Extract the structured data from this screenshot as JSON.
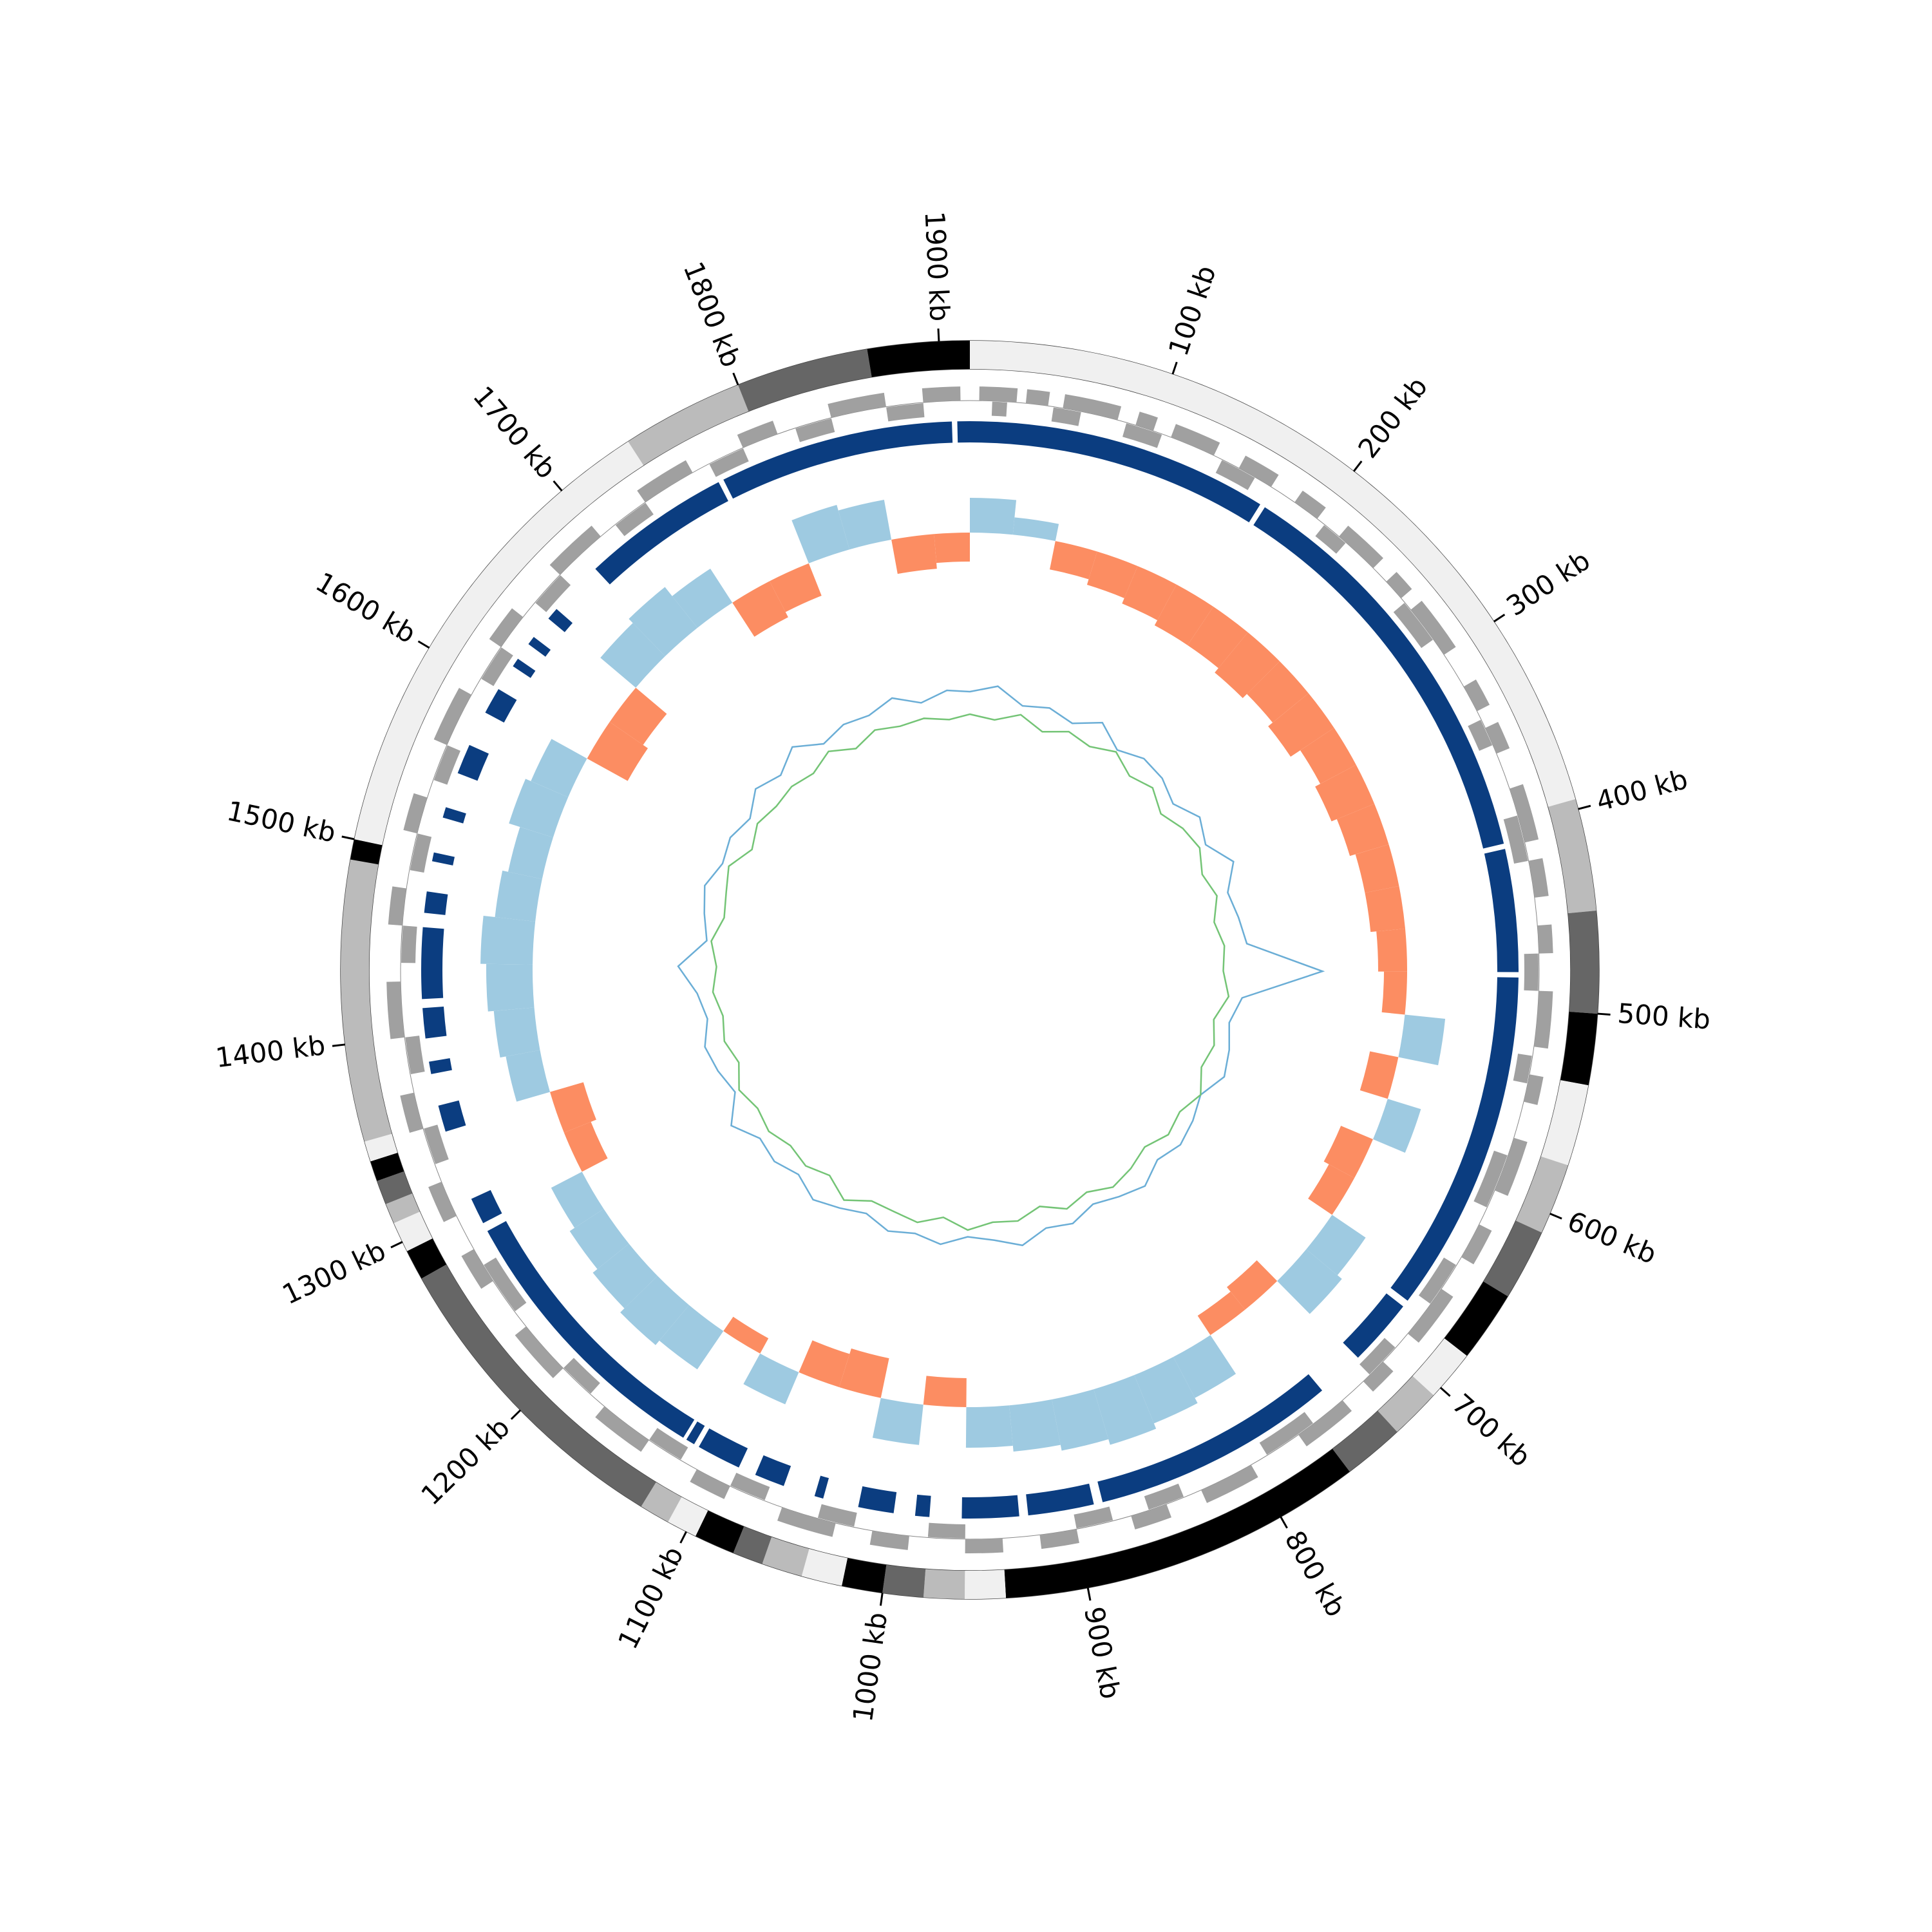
{
  "chart_data": {
    "type": "circular",
    "xlim": [
      0,
      1915
    ],
    "xticks": [
      {
        "value": 100,
        "label": "100 kb"
      },
      {
        "value": 200,
        "label": "200 kb"
      },
      {
        "value": 300,
        "label": "300 kb"
      },
      {
        "value": 400,
        "label": "400 kb"
      },
      {
        "value": 500,
        "label": "500 kb"
      },
      {
        "value": 600,
        "label": "600 kb"
      },
      {
        "value": 700,
        "label": "700 kb"
      },
      {
        "value": 800,
        "label": "800 kb"
      },
      {
        "value": 900,
        "label": "900 kb"
      },
      {
        "value": 1000,
        "label": "1000 kb"
      },
      {
        "value": 1100,
        "label": "1100 kb"
      },
      {
        "value": 1200,
        "label": "1200 kb"
      },
      {
        "value": 1300,
        "label": "1300 kb"
      },
      {
        "value": 1400,
        "label": "1400 kb"
      },
      {
        "value": 1500,
        "label": "1500 kb"
      },
      {
        "value": 1600,
        "label": "1600 kb"
      },
      {
        "value": 1700,
        "label": "1700 kb"
      },
      {
        "value": 1800,
        "label": "1800 kb"
      },
      {
        "value": 1900,
        "label": "1900 kb"
      }
    ],
    "karyotype": [
      {
        "start": 0,
        "end": 395,
        "color": "#f0f0f0"
      },
      {
        "start": 395,
        "end": 450,
        "color": "#bbbbbb"
      },
      {
        "start": 450,
        "end": 500,
        "color": "#666666"
      },
      {
        "start": 500,
        "end": 535,
        "color": "#000000"
      },
      {
        "start": 535,
        "end": 575,
        "color": "#f0f0f0"
      },
      {
        "start": 575,
        "end": 610,
        "color": "#bbbbbb"
      },
      {
        "start": 610,
        "end": 645,
        "color": "#666666"
      },
      {
        "start": 645,
        "end": 680,
        "color": "#000000"
      },
      {
        "start": 680,
        "end": 705,
        "color": "#f0f0f0"
      },
      {
        "start": 705,
        "end": 730,
        "color": "#bbbbbb"
      },
      {
        "start": 730,
        "end": 760,
        "color": "#666666"
      },
      {
        "start": 760,
        "end": 940,
        "color": "#000000"
      },
      {
        "start": 940,
        "end": 960,
        "color": "#f0f0f0"
      },
      {
        "start": 960,
        "end": 980,
        "color": "#bbbbbb"
      },
      {
        "start": 980,
        "end": 1000,
        "color": "#666666"
      },
      {
        "start": 1000,
        "end": 1020,
        "color": "#000000"
      },
      {
        "start": 1020,
        "end": 1040,
        "color": "#f0f0f0"
      },
      {
        "start": 1040,
        "end": 1060,
        "color": "#bbbbbb"
      },
      {
        "start": 1060,
        "end": 1075,
        "color": "#666666"
      },
      {
        "start": 1075,
        "end": 1095,
        "color": "#000000"
      },
      {
        "start": 1095,
        "end": 1110,
        "color": "#f0f0f0"
      },
      {
        "start": 1110,
        "end": 1125,
        "color": "#bbbbbb"
      },
      {
        "start": 1125,
        "end": 1280,
        "color": "#666666"
      },
      {
        "start": 1280,
        "end": 1295,
        "color": "#000000"
      },
      {
        "start": 1295,
        "end": 1310,
        "color": "#f0f0f0"
      },
      {
        "start": 1310,
        "end": 1320,
        "color": "#bbbbbb"
      },
      {
        "start": 1320,
        "end": 1332,
        "color": "#666666"
      },
      {
        "start": 1332,
        "end": 1342,
        "color": "#000000"
      },
      {
        "start": 1342,
        "end": 1352,
        "color": "#f0f0f0"
      },
      {
        "start": 1352,
        "end": 1490,
        "color": "#bbbbbb"
      },
      {
        "start": 1490,
        "end": 1500,
        "color": "#000000"
      },
      {
        "start": 1500,
        "end": 1740,
        "color": "#f0f0f0"
      },
      {
        "start": 1740,
        "end": 1800,
        "color": "#bbbbbb"
      },
      {
        "start": 1800,
        "end": 1865,
        "color": "#666666"
      },
      {
        "start": 1865,
        "end": 1915,
        "color": "#000000"
      }
    ],
    "genes": {
      "color": "#a0a0a0",
      "plus": [
        [
          5,
          25
        ],
        [
          30,
          42
        ],
        [
          50,
          80
        ],
        [
          90,
          100
        ],
        [
          110,
          135
        ],
        [
          150,
          170
        ],
        [
          185,
          200
        ],
        [
          215,
          240
        ],
        [
          250,
          262
        ],
        [
          270,
          300
        ],
        [
          320,
          335
        ],
        [
          345,
          360
        ],
        [
          380,
          410
        ],
        [
          420,
          440
        ],
        [
          455,
          470
        ],
        [
          490,
          520
        ],
        [
          535,
          550
        ],
        [
          570,
          600
        ],
        [
          620,
          640
        ],
        [
          660,
          690
        ],
        [
          710,
          725
        ],
        [
          740,
          770
        ],
        [
          800,
          830
        ],
        [
          850,
          870
        ],
        [
          900,
          920
        ],
        [
          940,
          960
        ],
        [
          990,
          1010
        ],
        [
          1030,
          1060
        ],
        [
          1090,
          1110
        ],
        [
          1140,
          1170
        ],
        [
          1200,
          1230
        ],
        [
          1260,
          1280
        ],
        [
          1300,
          1320
        ],
        [
          1350,
          1370
        ],
        [
          1400,
          1430
        ],
        [
          1460,
          1480
        ],
        [
          1510,
          1530
        ],
        [
          1560,
          1590
        ],
        [
          1620,
          1640
        ],
        [
          1670,
          1700
        ],
        [
          1730,
          1760
        ],
        [
          1790,
          1810
        ],
        [
          1840,
          1870
        ],
        [
          1890,
          1910
        ]
      ],
      "minus": [
        [
          12,
          20
        ],
        [
          45,
          60
        ],
        [
          85,
          105
        ],
        [
          140,
          160
        ],
        [
          205,
          220
        ],
        [
          265,
          290
        ],
        [
          340,
          355
        ],
        [
          395,
          420
        ],
        [
          470,
          490
        ],
        [
          525,
          540
        ],
        [
          580,
          610
        ],
        [
          645,
          670
        ],
        [
          700,
          720
        ],
        [
          760,
          790
        ],
        [
          840,
          860
        ],
        [
          880,
          900
        ],
        [
          960,
          980
        ],
        [
          1020,
          1040
        ],
        [
          1070,
          1090
        ],
        [
          1120,
          1140
        ],
        [
          1180,
          1200
        ],
        [
          1240,
          1270
        ],
        [
          1330,
          1350
        ],
        [
          1380,
          1400
        ],
        [
          1440,
          1460
        ],
        [
          1490,
          1510
        ],
        [
          1540,
          1560
        ],
        [
          1600,
          1620
        ],
        [
          1650,
          1670
        ],
        [
          1710,
          1730
        ],
        [
          1770,
          1790
        ],
        [
          1820,
          1840
        ],
        [
          1870,
          1890
        ]
      ]
    },
    "blocks": {
      "color": "#0b3d80",
      "spans": [
        [
          0,
          170
        ],
        [
          173,
          408
        ],
        [
          411,
          480
        ],
        [
          483,
          676
        ],
        [
          680,
          718
        ],
        [
          745,
          883
        ],
        [
          888,
          925
        ],
        [
          930,
          962
        ],
        [
          980,
          988
        ],
        [
          1000,
          1020
        ],
        [
          1040,
          1045
        ],
        [
          1063,
          1080
        ],
        [
          1090,
          1115
        ],
        [
          1118,
          1123
        ],
        [
          1125,
          1285
        ],
        [
          1290,
          1305
        ],
        [
          1345,
          1360
        ],
        [
          1378,
          1385
        ],
        [
          1398,
          1415
        ],
        [
          1420,
          1460
        ],
        [
          1468,
          1480
        ],
        [
          1497,
          1502
        ],
        [
          1522,
          1528
        ],
        [
          1548,
          1565
        ],
        [
          1585,
          1600
        ],
        [
          1615,
          1620
        ],
        [
          1630,
          1635
        ],
        [
          1648,
          1655
        ],
        [
          1686,
          1770
        ],
        [
          1773,
          1905
        ],
        [
          1908,
          1915
        ]
      ]
    },
    "x": [
      0,
      30,
      60,
      90,
      120,
      150,
      180,
      210,
      240,
      270,
      300,
      330,
      360,
      390,
      420,
      450,
      480,
      510,
      540,
      570,
      600,
      630,
      660,
      690,
      720,
      750,
      780,
      810,
      840,
      870,
      900,
      930,
      960,
      990,
      1020,
      1050,
      1080,
      1110,
      1140,
      1170,
      1200,
      1230,
      1260,
      1290,
      1320,
      1350,
      1380,
      1410,
      1440,
      1470,
      1500,
      1530,
      1560,
      1590,
      1620,
      1650,
      1680,
      1710,
      1740,
      1770,
      1800,
      1830,
      1860,
      1890
    ],
    "gc_skew": {
      "positive_color": "#9ecae1",
      "negative_color": "#fc8d62",
      "values": [
        0.6,
        0.3,
        -0.5,
        -0.6,
        -0.7,
        -0.8,
        -0.8,
        -0.9,
        -0.8,
        -0.9,
        -0.7,
        -0.8,
        -0.7,
        -0.6,
        -0.6,
        -0.5,
        -0.4,
        0.7,
        -0.5,
        0.6,
        -0.6,
        -0.5,
        0.7,
        0.8,
        -0.5,
        -0.4,
        0.8,
        0.9,
        1.0,
        0.9,
        0.8,
        0.7,
        -0.5,
        0.7,
        -0.7,
        -0.6,
        0.6,
        -0.3,
        0.8,
        0.9,
        0.8,
        0.7,
        0.6,
        -0.5,
        -0.6,
        0.6,
        0.7,
        0.8,
        0.9,
        0.7,
        0.6,
        0.8,
        0.7,
        -0.8,
        -0.7,
        0.8,
        0.9,
        0.7,
        -0.7,
        -0.6,
        0.8,
        0.7,
        -0.6,
        -0.5
      ]
    },
    "series": [
      {
        "color": "#6baed6",
        "values": [
          0.52,
          0.55,
          0.48,
          0.5,
          0.47,
          0.53,
          0.46,
          0.5,
          0.49,
          0.45,
          0.51,
          0.47,
          0.55,
          0.48,
          0.5,
          0.52,
          0.85,
          0.5,
          0.46,
          0.49,
          0.51,
          0.45,
          0.48,
          0.5,
          0.47,
          0.52,
          0.49,
          0.46,
          0.5,
          0.48,
          0.53,
          0.49,
          0.47,
          0.51,
          0.48,
          0.5,
          0.46,
          0.49,
          0.52,
          0.47,
          0.5,
          0.48,
          0.55,
          0.46,
          0.49,
          0.51,
          0.47,
          0.5,
          0.58,
          0.46,
          0.49,
          0.52,
          0.48,
          0.5,
          0.47,
          0.53,
          0.49,
          0.55,
          0.48,
          0.51,
          0.5,
          0.54,
          0.49,
          0.53
        ]
      },
      {
        "color": "#74c476",
        "values": [
          0.42,
          0.4,
          0.44,
          0.39,
          0.43,
          0.41,
          0.45,
          0.4,
          0.43,
          0.38,
          0.42,
          0.44,
          0.4,
          0.43,
          0.39,
          0.42,
          0.41,
          0.44,
          0.39,
          0.42,
          0.4,
          0.45,
          0.41,
          0.43,
          0.39,
          0.42,
          0.44,
          0.4,
          0.43,
          0.38,
          0.42,
          0.41,
          0.44,
          0.39,
          0.43,
          0.41,
          0.4,
          0.45,
          0.39,
          0.42,
          0.4,
          0.43,
          0.41,
          0.44,
          0.39,
          0.42,
          0.4,
          0.43,
          0.41,
          0.44,
          0.4,
          0.42,
          0.45,
          0.39,
          0.43,
          0.41,
          0.42,
          0.4,
          0.44,
          0.39,
          0.43,
          0.41,
          0.42,
          0.4
        ]
      }
    ]
  }
}
